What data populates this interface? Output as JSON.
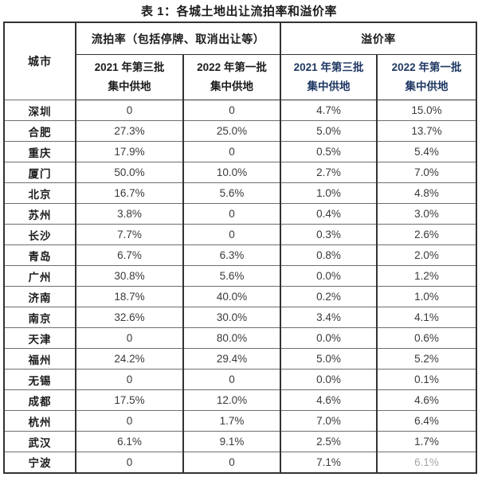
{
  "title": "表 1：各城土地出让流拍率和溢价率",
  "table": {
    "corner_header": "城市",
    "group_headers": [
      {
        "label": "流拍率（包括停牌、取消出让等）"
      },
      {
        "label": "溢价率"
      }
    ],
    "sub_headers": [
      {
        "line1": "2021 年第三批",
        "line2": "集中供地"
      },
      {
        "line1": "2022 年第一批",
        "line2": "集中供地"
      },
      {
        "line1": "2021 年第三批",
        "line2": "集中供地"
      },
      {
        "line1": "2022 年第一批",
        "line2": "集中供地"
      }
    ],
    "rows": [
      {
        "city": "深圳",
        "values": [
          "0",
          "0",
          "4.7%",
          "15.0%"
        ]
      },
      {
        "city": "合肥",
        "values": [
          "27.3%",
          "25.0%",
          "5.0%",
          "13.7%"
        ]
      },
      {
        "city": "重庆",
        "values": [
          "17.9%",
          "0",
          "0.5%",
          "5.4%"
        ]
      },
      {
        "city": "厦门",
        "values": [
          "50.0%",
          "10.0%",
          "2.7%",
          "7.0%"
        ]
      },
      {
        "city": "北京",
        "values": [
          "16.7%",
          "5.6%",
          "1.0%",
          "4.8%"
        ]
      },
      {
        "city": "苏州",
        "values": [
          "3.8%",
          "0",
          "0.4%",
          "3.0%"
        ]
      },
      {
        "city": "长沙",
        "values": [
          "7.7%",
          "0",
          "0.3%",
          "2.6%"
        ]
      },
      {
        "city": "青岛",
        "values": [
          "6.7%",
          "6.3%",
          "0.8%",
          "2.0%"
        ]
      },
      {
        "city": "广州",
        "values": [
          "30.8%",
          "5.6%",
          "0.0%",
          "1.2%"
        ]
      },
      {
        "city": "济南",
        "values": [
          "18.7%",
          "40.0%",
          "0.2%",
          "1.0%"
        ]
      },
      {
        "city": "南京",
        "values": [
          "32.6%",
          "30.0%",
          "3.4%",
          "4.1%"
        ]
      },
      {
        "city": "天津",
        "values": [
          "0",
          "80.0%",
          "0.0%",
          "0.6%"
        ]
      },
      {
        "city": "福州",
        "values": [
          "24.2%",
          "29.4%",
          "5.0%",
          "5.2%"
        ]
      },
      {
        "city": "无锡",
        "values": [
          "0",
          "0",
          "0.0%",
          "0.1%"
        ]
      },
      {
        "city": "成都",
        "values": [
          "17.5%",
          "12.0%",
          "4.6%",
          "4.6%"
        ]
      },
      {
        "city": "杭州",
        "values": [
          "0",
          "1.7%",
          "7.0%",
          "6.4%"
        ]
      },
      {
        "city": "武汉",
        "values": [
          "6.1%",
          "9.1%",
          "2.5%",
          "1.7%"
        ]
      },
      {
        "city": "宁波",
        "values": [
          "0",
          "0",
          "7.1%",
          "6.1%"
        ]
      }
    ],
    "faded_cells": [
      [
        17,
        3
      ]
    ]
  },
  "colors": {
    "header_text": "#1c1c1c",
    "premium_subheader_text": "#1f3864",
    "value_text": "#3a3a3a",
    "border_dark": "#333333",
    "border_light": "#6e6e6e",
    "faded_text": "#a8a6a2"
  }
}
